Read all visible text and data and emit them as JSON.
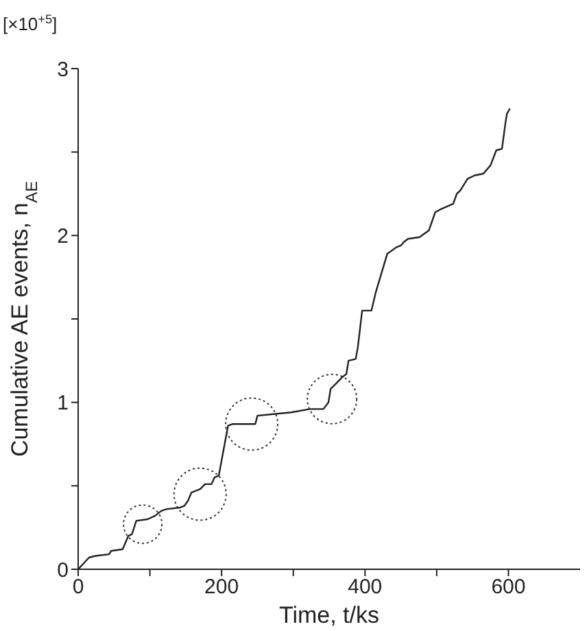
{
  "chart_data": {
    "type": "line",
    "xlabel": "Time, t/ks",
    "ylabel": "Cumulative AE events, n$_{AE}$",
    "annotations": [
      "[×10$^{+5}$]"
    ],
    "x": [
      0,
      15,
      24,
      43,
      46,
      62,
      65,
      70,
      75,
      81,
      97,
      107,
      116,
      123,
      142,
      148,
      153,
      158,
      170,
      177,
      186,
      190,
      196,
      209,
      215,
      247,
      250,
      272,
      297,
      323,
      342,
      349,
      352,
      359,
      368,
      374,
      377,
      387,
      390,
      396,
      409,
      415,
      431,
      444,
      450,
      454,
      460,
      476,
      489,
      498,
      507,
      523,
      528,
      533,
      543,
      553,
      565,
      575,
      583,
      591,
      596,
      598,
      602
    ],
    "series": [
      {
        "color": "#222222",
        "values": [
          0,
          0.07,
          0.08,
          0.09,
          0.11,
          0.12,
          0.15,
          0.2,
          0.21,
          0.29,
          0.3,
          0.32,
          0.35,
          0.36,
          0.37,
          0.38,
          0.41,
          0.46,
          0.48,
          0.51,
          0.51,
          0.55,
          0.56,
          0.86,
          0.87,
          0.87,
          0.92,
          0.93,
          0.94,
          0.96,
          0.96,
          1.0,
          1.08,
          1.11,
          1.15,
          1.17,
          1.25,
          1.26,
          1.33,
          1.55,
          1.55,
          1.66,
          1.89,
          1.93,
          1.94,
          1.96,
          1.98,
          1.99,
          2.03,
          2.14,
          2.16,
          2.19,
          2.25,
          2.27,
          2.34,
          2.36,
          2.37,
          2.42,
          2.51,
          2.52,
          2.68,
          2.73,
          2.76
        ]
      }
    ],
    "xlim": [
      0,
      700
    ],
    "xticks": [
      0,
      {
        "value": 100,
        "label": null
      },
      200,
      {
        "value": 300,
        "label": null
      },
      400,
      {
        "value": 500,
        "label": null
      },
      600
    ],
    "ylim": [
      0,
      3
    ],
    "yticks": [
      0,
      {
        "value": 0.5,
        "label": null
      },
      1,
      {
        "value": 1.5,
        "label": null
      },
      2,
      {
        "value": 2.5,
        "label": null
      },
      3
    ],
    "grid": false,
    "marker": "none",
    "line_style": "solid"
  }
}
